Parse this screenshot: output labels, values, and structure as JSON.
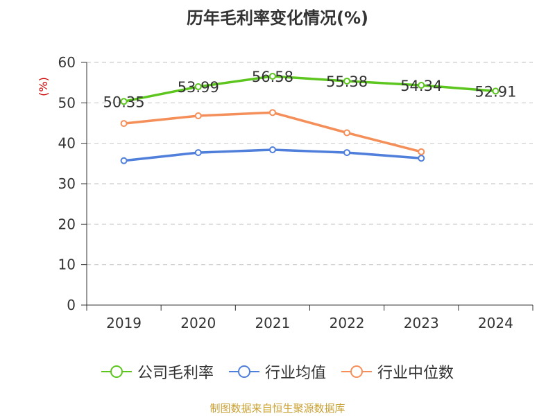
{
  "chart_data": {
    "type": "line",
    "title": "历年毛利率变化情况(%)",
    "ylabel": "(%)",
    "categories": [
      "2019",
      "2020",
      "2021",
      "2022",
      "2023",
      "2024"
    ],
    "ylim": [
      0,
      60
    ],
    "yticks": [
      0,
      10,
      20,
      30,
      40,
      50,
      60
    ],
    "grid": true,
    "legend_position": "bottom",
    "series": [
      {
        "name": "公司毛利率",
        "color": "#5cc51e",
        "values": [
          50.35,
          53.99,
          56.58,
          55.38,
          54.34,
          52.91
        ],
        "labels": [
          "50.35",
          "53.99",
          "56.58",
          "55.38",
          "54.34",
          "52.91"
        ]
      },
      {
        "name": "行业均值",
        "color": "#4f7fdb",
        "values": [
          35.7,
          37.7,
          38.4,
          37.7,
          36.3,
          null
        ]
      },
      {
        "name": "行业中位数",
        "color": "#f58f5a",
        "values": [
          44.9,
          46.8,
          47.6,
          42.6,
          37.9,
          null
        ]
      }
    ]
  },
  "footer": {
    "source": "制图数据来自恒生聚源数据库"
  }
}
